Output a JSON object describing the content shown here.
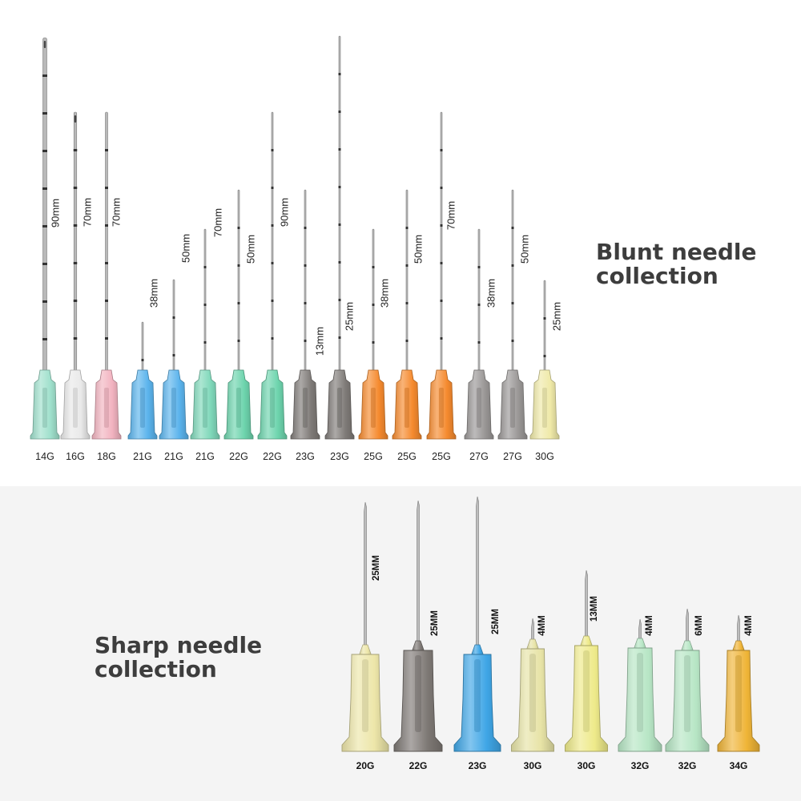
{
  "blunt": {
    "title_line1": "Blunt needle",
    "title_line2": "collection",
    "needles": [
      {
        "gauge": "14G",
        "length": "90mm",
        "color": "#9fe0cc"
      },
      {
        "gauge": "16G",
        "length": "70mm",
        "color": "#e9e9e9"
      },
      {
        "gauge": "18G",
        "length": "70mm",
        "color": "#f2b3c0"
      },
      {
        "gauge": "21G",
        "length": "38mm",
        "color": "#5ab3ec"
      },
      {
        "gauge": "21G",
        "length": "50mm",
        "color": "#5ab3ec"
      },
      {
        "gauge": "21G",
        "length": "70mm",
        "color": "#7fd8ba"
      },
      {
        "gauge": "22G",
        "length": "50mm",
        "color": "#6dd4ad"
      },
      {
        "gauge": "22G",
        "length": "90mm",
        "color": "#6dd4ad"
      },
      {
        "gauge": "23G",
        "length": "13mm",
        "color": "#7f7b78"
      },
      {
        "gauge": "23G",
        "length": "25mm",
        "color": "#7f7b78"
      },
      {
        "gauge": "25G",
        "length": "38mm",
        "color": "#f58a2e"
      },
      {
        "gauge": "25G",
        "length": "50mm",
        "color": "#f58a2e"
      },
      {
        "gauge": "25G",
        "length": "70mm",
        "color": "#f58a2e"
      },
      {
        "gauge": "27G",
        "length": "38mm",
        "color": "#9a9796"
      },
      {
        "gauge": "27G",
        "length": "50mm",
        "color": "#9a9796"
      },
      {
        "gauge": "30G",
        "length": "25mm",
        "color": "#efe9a8"
      }
    ]
  },
  "sharp": {
    "title_line1": "Sharp needle",
    "title_line2": "collection",
    "needles": [
      {
        "gauge": "20G",
        "length": "25MM",
        "color": "#ede6a9"
      },
      {
        "gauge": "22G",
        "length": "25MM",
        "color": "#7d7874"
      },
      {
        "gauge": "23G",
        "length": "25MM",
        "color": "#3fa6e6"
      },
      {
        "gauge": "30G",
        "length": "4MM",
        "color": "#e7e3a6"
      },
      {
        "gauge": "30G",
        "length": "13MM",
        "color": "#eeea8a"
      },
      {
        "gauge": "32G",
        "length": "4MM",
        "color": "#b7e6c5"
      },
      {
        "gauge": "32G",
        "length": "6MM",
        "color": "#b7e6c5"
      },
      {
        "gauge": "34G",
        "length": "4MM",
        "color": "#efb437"
      }
    ]
  }
}
